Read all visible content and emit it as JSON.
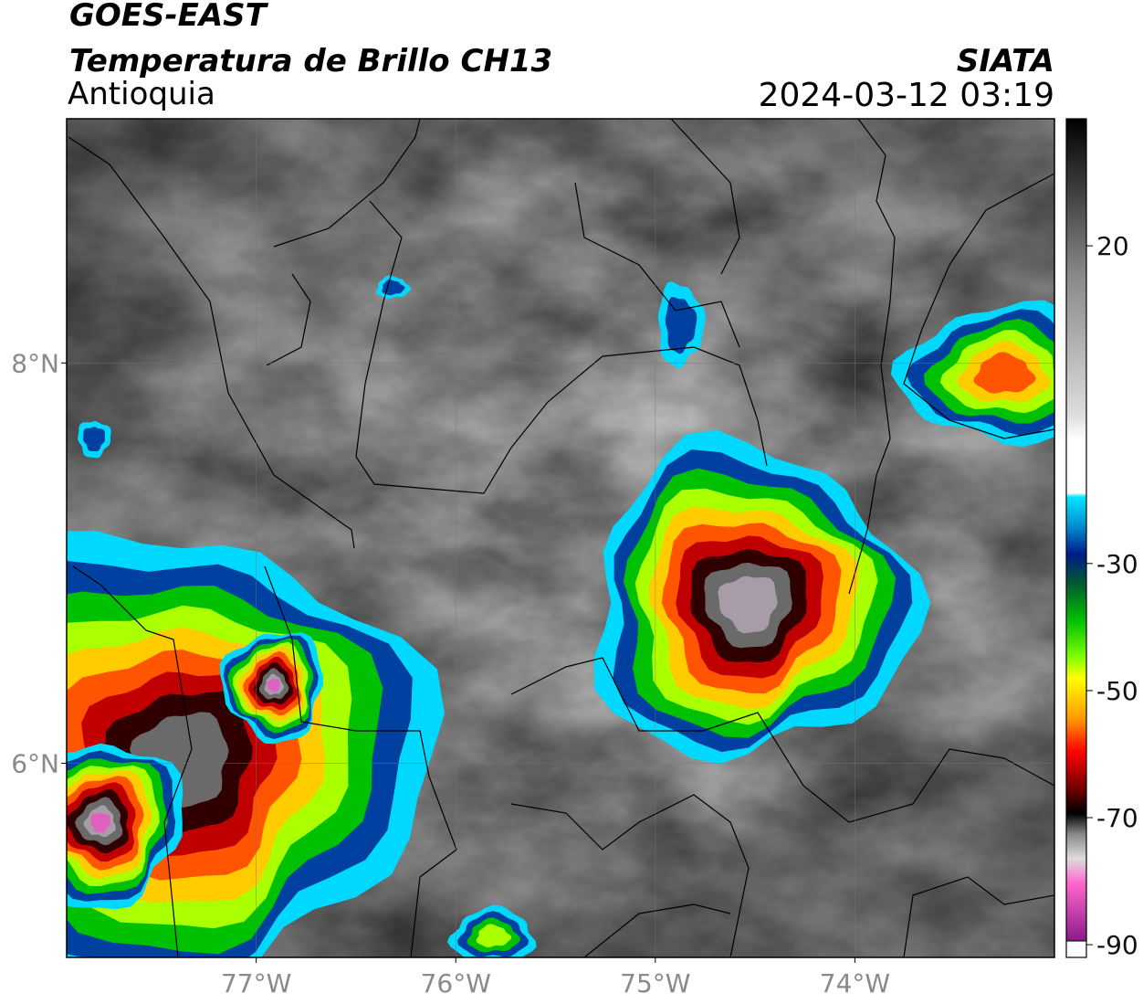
{
  "header": {
    "title": "GOES-EAST",
    "subtitle": "Temperatura de Brillo CH13",
    "region": "Antioquia",
    "source": "SIATA",
    "datetime": "2024-03-12 03:19"
  },
  "map": {
    "xlim": [
      -77.95,
      -73
    ],
    "ylim": [
      5.03,
      9.22
    ],
    "grid": true,
    "xticks": [
      {
        "value": -77,
        "label": "77°W"
      },
      {
        "value": -76,
        "label": "76°W"
      },
      {
        "value": -75,
        "label": "75°W"
      },
      {
        "value": -74,
        "label": "74°W"
      }
    ],
    "yticks": [
      {
        "value": 8,
        "label": "8°N"
      },
      {
        "value": 6,
        "label": "6°N"
      }
    ]
  },
  "colorbar": {
    "lim": [
      -92,
      40
    ],
    "ticks": [
      20,
      -30,
      -50,
      -70,
      -90
    ]
  }
}
